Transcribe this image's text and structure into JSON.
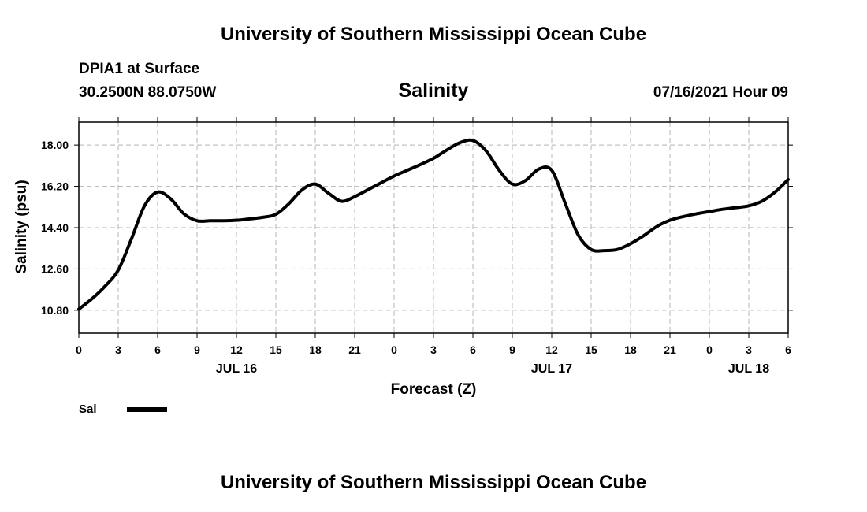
{
  "header": {
    "title": "University of Southern Mississippi Ocean Cube",
    "station": "DPIA1 at Surface",
    "coords": "30.2500N  88.0750W",
    "variable": "Salinity",
    "timestamp": "07/16/2021 Hour 09",
    "footer_title": "University of Southern Mississippi Ocean Cube"
  },
  "chart_data": {
    "type": "line",
    "title": "Salinity",
    "xlabel": "Forecast (Z)",
    "ylabel": "Salinity (psu)",
    "xlim": [
      0,
      54
    ],
    "ylim": [
      9.8,
      19.0
    ],
    "grid": true,
    "x_ticks": [
      {
        "x": 0,
        "label": "0"
      },
      {
        "x": 3,
        "label": "3"
      },
      {
        "x": 6,
        "label": "6"
      },
      {
        "x": 9,
        "label": "9"
      },
      {
        "x": 12,
        "label": "12"
      },
      {
        "x": 15,
        "label": "15"
      },
      {
        "x": 18,
        "label": "18"
      },
      {
        "x": 21,
        "label": "21"
      },
      {
        "x": 24,
        "label": "0"
      },
      {
        "x": 27,
        "label": "3"
      },
      {
        "x": 30,
        "label": "6"
      },
      {
        "x": 33,
        "label": "9"
      },
      {
        "x": 36,
        "label": "12"
      },
      {
        "x": 39,
        "label": "15"
      },
      {
        "x": 42,
        "label": "18"
      },
      {
        "x": 45,
        "label": "21"
      },
      {
        "x": 48,
        "label": "0"
      },
      {
        "x": 51,
        "label": "3"
      },
      {
        "x": 54,
        "label": "6"
      }
    ],
    "date_labels": [
      {
        "x": 12,
        "label": "JUL 16"
      },
      {
        "x": 36,
        "label": "JUL 17"
      },
      {
        "x": 51,
        "label": "JUL 18"
      }
    ],
    "y_ticks": [
      {
        "y": 10.8,
        "label": "10.80"
      },
      {
        "y": 12.6,
        "label": "12.60"
      },
      {
        "y": 14.4,
        "label": "14.40"
      },
      {
        "y": 16.2,
        "label": "16.20"
      },
      {
        "y": 18.0,
        "label": "18.00"
      }
    ],
    "series": [
      {
        "name": "Sal",
        "color": "#000000",
        "x": [
          0,
          1,
          2,
          3,
          4,
          5,
          6,
          7,
          8,
          9,
          10,
          11,
          12,
          13,
          14,
          15,
          16,
          17,
          18,
          19,
          20,
          21,
          22,
          23,
          24,
          25,
          26,
          27,
          28,
          29,
          30,
          31,
          32,
          33,
          34,
          35,
          36,
          37,
          38,
          39,
          40,
          41,
          42,
          43,
          44,
          45,
          46,
          47,
          48,
          49,
          50,
          51,
          52,
          53,
          54
        ],
        "values": [
          10.85,
          11.3,
          11.85,
          12.55,
          13.9,
          15.35,
          15.95,
          15.65,
          15.0,
          14.7,
          14.7,
          14.7,
          14.72,
          14.78,
          14.85,
          14.98,
          15.45,
          16.05,
          16.3,
          15.9,
          15.55,
          15.75,
          16.05,
          16.35,
          16.65,
          16.9,
          17.15,
          17.42,
          17.78,
          18.1,
          18.2,
          17.75,
          16.9,
          16.3,
          16.45,
          16.95,
          16.9,
          15.5,
          14.1,
          13.45,
          13.4,
          13.45,
          13.7,
          14.05,
          14.45,
          14.72,
          14.88,
          15.0,
          15.1,
          15.2,
          15.27,
          15.35,
          15.55,
          15.95,
          16.5
        ]
      }
    ],
    "legend": [
      {
        "label": "Sal",
        "color": "#000000"
      }
    ]
  }
}
